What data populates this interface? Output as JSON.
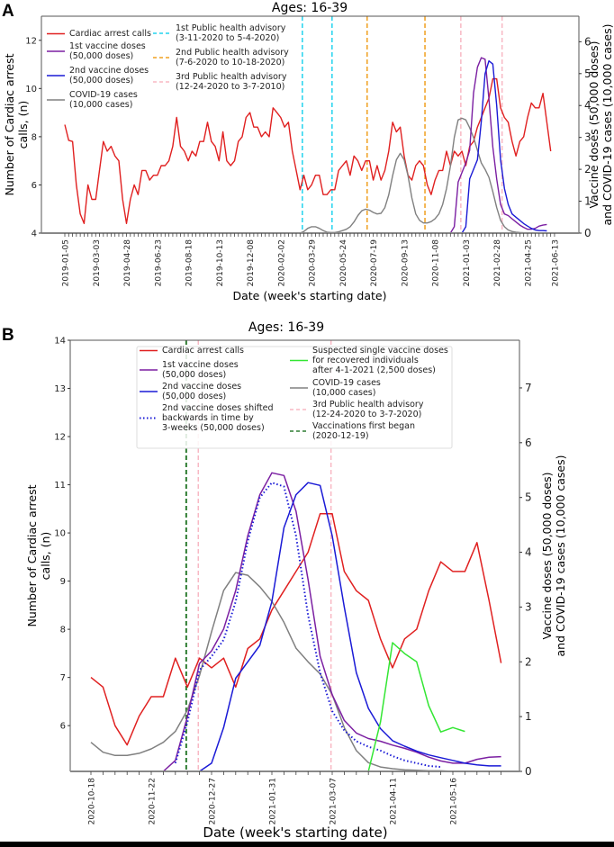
{
  "chart_data": [
    {
      "panel": "A",
      "type": "line",
      "title": "Ages: 16-39",
      "xlabel": "Date (week's starting date)",
      "ylabel": "Number of Cardiac arrest calls, (n)",
      "y2label_line1": "Vaccine doses (50,000 doses)",
      "y2label_line2": "and COVID-19 cases (10,000 cases)",
      "x_start": "2019-01-05",
      "x_step_days": 7,
      "xticks": [
        "2019-01-05",
        "2019-03-03",
        "2019-04-28",
        "2019-06-23",
        "2019-08-18",
        "2019-10-13",
        "2019-12-08",
        "2020-02-02",
        "2020-03-29",
        "2020-05-24",
        "2020-07-19",
        "2020-09-13",
        "2020-11-08",
        "2021-01-03",
        "2021-02-28",
        "2021-04-25",
        "2021-06-13"
      ],
      "xtick_weeks": [
        0,
        8,
        16,
        24,
        32,
        40,
        48,
        56,
        64,
        72,
        80,
        88,
        96,
        104,
        112,
        120,
        127
      ],
      "ylim": [
        4,
        13
      ],
      "yticks": [
        4,
        6,
        8,
        10,
        12
      ],
      "y2lim": [
        0,
        6.8
      ],
      "y2ticks": [
        0,
        1,
        2,
        3,
        4,
        5,
        6
      ],
      "legend": [
        {
          "label_lines": [
            "Cardiac arrest calls"
          ],
          "color": "#e02020",
          "style": "solid"
        },
        {
          "label_lines": [
            "1st vaccine doses",
            "(50,000 doses)"
          ],
          "color": "#7b1fa2",
          "style": "solid"
        },
        {
          "label_lines": [
            "2nd vaccine doses",
            "(50,000 doses)"
          ],
          "color": "#1a1ad6",
          "style": "solid"
        },
        {
          "label_lines": [
            "COVID-19 cases",
            "(10,000 cases)"
          ],
          "color": "#808080",
          "style": "solid"
        },
        {
          "label_lines": [
            "1st Public health advisory",
            "(3-11-2020 to 5-4-2020)"
          ],
          "color": "#22d3ee",
          "style": "dashed"
        },
        {
          "label_lines": [
            "2nd Public health advisory",
            "(7-6-2020 to 10-18-2020)"
          ],
          "color": "#f0a020",
          "style": "dashed"
        },
        {
          "label_lines": [
            "3rd Public health advisory",
            "(12-24-2020 to 3-7-2010)"
          ],
          "color": "#f8b8c4",
          "style": "dashed"
        }
      ],
      "vlines": [
        {
          "week": 61.6,
          "color": "#22d3ee"
        },
        {
          "week": 69.3,
          "color": "#22d3ee"
        },
        {
          "week": 78.4,
          "color": "#f0a020"
        },
        {
          "week": 93.4,
          "color": "#f0a020"
        },
        {
          "week": 102.7,
          "color": "#f8b8c4"
        },
        {
          "week": 113.4,
          "color": "#f8b8c4"
        }
      ],
      "series": [
        {
          "name": "Cardiac arrest calls",
          "axis": "left",
          "color": "#e02020",
          "start_week": 0,
          "values": [
            8.5,
            7.85,
            7.8,
            6.0,
            4.8,
            4.4,
            6.0,
            5.4,
            5.4,
            6.6,
            7.8,
            7.4,
            7.6,
            7.2,
            7.0,
            5.4,
            4.4,
            5.4,
            6.0,
            5.6,
            6.6,
            6.6,
            6.2,
            6.4,
            6.4,
            6.8,
            6.8,
            7.0,
            7.6,
            8.8,
            7.6,
            7.4,
            7.0,
            7.4,
            7.2,
            7.8,
            7.8,
            8.6,
            7.8,
            7.6,
            7.0,
            8.2,
            7.0,
            6.8,
            7.0,
            7.8,
            8.0,
            8.8,
            9.0,
            8.4,
            8.4,
            8.0,
            8.2,
            8.0,
            9.2,
            9.0,
            8.8,
            8.4,
            8.6,
            7.4,
            6.6,
            5.8,
            6.4,
            5.8,
            6.0,
            6.4,
            6.4,
            5.6,
            5.6,
            5.8,
            5.8,
            6.6,
            6.8,
            7.0,
            6.4,
            7.2,
            7.0,
            6.6,
            7.0,
            7.0,
            6.2,
            6.8,
            6.2,
            6.6,
            7.4,
            8.6,
            8.2,
            8.4,
            7.2,
            6.4,
            6.2,
            6.8,
            7.0,
            6.8,
            6.0,
            5.6,
            6.2,
            6.6,
            6.6,
            7.4,
            6.8,
            7.4,
            7.2,
            7.4,
            6.8,
            7.6,
            7.8,
            8.4,
            8.8,
            9.2,
            9.6,
            10.4,
            10.4,
            9.2,
            8.8,
            8.6,
            7.8,
            7.2,
            7.8,
            8.0,
            8.8,
            9.4,
            9.2,
            9.2,
            9.8,
            8.6,
            7.4
          ]
        },
        {
          "name": "COVID-19 cases",
          "axis": "right",
          "color": "#808080",
          "start_week": 61,
          "values": [
            0,
            0.05,
            0.15,
            0.2,
            0.2,
            0.15,
            0.08,
            0.03,
            0.02,
            0.02,
            0.04,
            0.08,
            0.12,
            0.2,
            0.35,
            0.55,
            0.7,
            0.75,
            0.72,
            0.65,
            0.6,
            0.62,
            0.8,
            1.2,
            1.8,
            2.3,
            2.5,
            2.3,
            1.8,
            1.1,
            0.6,
            0.4,
            0.32,
            0.32,
            0.36,
            0.45,
            0.6,
            0.9,
            1.4,
            2.1,
            3.0,
            3.55,
            3.6,
            3.55,
            3.3,
            3.0,
            2.6,
            2.2,
            2.0,
            1.75,
            1.3,
            0.8,
            0.4,
            0.2,
            0.1,
            0.05,
            0.03,
            0.02,
            0.01,
            0.01,
            0.01,
            0.01,
            0.0,
            0.0,
            0.0,
            0.0,
            0.0
          ]
        },
        {
          "name": "1st vaccine doses",
          "axis": "right",
          "color": "#7b1fa2",
          "start_week": 100,
          "values": [
            0,
            0.2,
            1.6,
            1.9,
            2.2,
            2.6,
            4.4,
            5.2,
            5.5,
            5.45,
            4.2,
            2.7,
            1.7,
            0.9,
            0.6,
            0.55,
            0.45,
            0.35,
            0.25,
            0.18,
            0.12,
            0.12,
            0.15,
            0.22,
            0.25,
            0.27
          ]
        },
        {
          "name": "2nd vaccine doses",
          "axis": "right",
          "color": "#1a1ad6",
          "start_week": 103,
          "values": [
            0,
            0.2,
            1.7,
            2.0,
            2.3,
            3.5,
            5.0,
            5.4,
            5.3,
            4.0,
            2.3,
            1.4,
            0.9,
            0.6,
            0.5,
            0.4,
            0.3,
            0.22,
            0.15,
            0.1,
            0.08,
            0.08,
            0.07
          ]
        }
      ]
    },
    {
      "panel": "B",
      "type": "line",
      "title": "Ages: 16-39",
      "xlabel": "Date (week's starting date)",
      "ylabel": "Number of Cardiac arrest calls, (n)",
      "y2label_line1": "Vaccine doses (50,000 doses)",
      "y2label_line2": "and COVID-19 cases (10,000 cases)",
      "x_start": "2020-10-18",
      "x_step_days": 7,
      "xticks": [
        "2020-10-18",
        "2020-11-22",
        "2020-12-27",
        "2021-01-31",
        "2021-03-07",
        "2021-04-11",
        "2021-05-16"
      ],
      "xtick_weeks": [
        0,
        5,
        10,
        15,
        20,
        25,
        30
      ],
      "ylim": [
        5.05,
        14.0
      ],
      "yticks": [
        6,
        7,
        8,
        9,
        10,
        11,
        12,
        13,
        14
      ],
      "y2lim": [
        0,
        7.87
      ],
      "y2ticks": [
        0,
        1,
        2,
        3,
        4,
        5,
        6,
        7
      ],
      "legend": [
        {
          "label_lines": [
            "Cardiac arrest calls"
          ],
          "color": "#e02020",
          "style": "solid"
        },
        {
          "label_lines": [
            "1st vaccine doses",
            "(50,000 doses)"
          ],
          "color": "#7b1fa2",
          "style": "solid"
        },
        {
          "label_lines": [
            "2nd vaccine doses",
            "(50,000 doses)"
          ],
          "color": "#1a1ad6",
          "style": "solid"
        },
        {
          "label_lines": [
            "2nd vaccine doses shifted",
            "backwards in time by",
            "3-weeks (50,000 doses)"
          ],
          "color": "#1a1ad6",
          "style": "dotted"
        },
        {
          "label_lines": [
            "Suspected single vaccine doses",
            "for recovered individuals",
            "after 4-1-2021 (2,500 doses)"
          ],
          "color": "#33e633",
          "style": "solid"
        },
        {
          "label_lines": [
            "COVID-19 cases",
            "(10,000 cases)"
          ],
          "color": "#808080",
          "style": "solid"
        },
        {
          "label_lines": [
            "3rd Public health advisory",
            "(12-24-2020 to 3-7-2020)"
          ],
          "color": "#f8b8c4",
          "style": "dashed"
        },
        {
          "label_lines": [
            "Vaccinations first began",
            "(2020-12-19)"
          ],
          "color": "#2e7d32",
          "style": "dashed"
        }
      ],
      "vlines": [
        {
          "week": 7.9,
          "color": "#2e7d32"
        },
        {
          "week": 8.9,
          "color": "#f8b8c4"
        },
        {
          "week": 19.9,
          "color": "#f8b8c4"
        }
      ],
      "series": [
        {
          "name": "Cardiac arrest calls",
          "axis": "left",
          "color": "#e02020",
          "style": "solid",
          "start_week": 0,
          "values": [
            7.0,
            6.8,
            6.0,
            5.6,
            6.2,
            6.6,
            6.6,
            7.4,
            6.8,
            7.4,
            7.2,
            7.4,
            6.8,
            7.6,
            7.8,
            8.4,
            8.8,
            9.2,
            9.6,
            10.4,
            10.4,
            9.2,
            8.8,
            8.6,
            7.8,
            7.2,
            7.8,
            8.0,
            8.8,
            9.4,
            9.2,
            9.2,
            9.8,
            8.6,
            7.3
          ]
        },
        {
          "name": "COVID-19 cases",
          "axis": "right",
          "color": "#808080",
          "style": "solid",
          "start_week": 0,
          "values": [
            0.53,
            0.35,
            0.29,
            0.29,
            0.33,
            0.41,
            0.53,
            0.73,
            1.12,
            1.75,
            2.55,
            3.3,
            3.63,
            3.58,
            3.37,
            3.1,
            2.72,
            2.25,
            2.0,
            1.78,
            1.4,
            0.8,
            0.38,
            0.16,
            0.08,
            0.05,
            0.03,
            0.02,
            0.01,
            0.01,
            0.0,
            0.0,
            0.0,
            0.0,
            0.0
          ]
        },
        {
          "name": "1st vaccine doses",
          "axis": "right",
          "color": "#7b1fa2",
          "style": "solid",
          "start_week": 0,
          "values": [
            0,
            0,
            0,
            0,
            0,
            0,
            0,
            0.2,
            1.0,
            1.97,
            2.2,
            2.6,
            3.3,
            4.3,
            5.05,
            5.45,
            5.4,
            4.75,
            3.5,
            2.1,
            1.4,
            0.93,
            0.7,
            0.6,
            0.55,
            0.48,
            0.42,
            0.35,
            0.26,
            0.19,
            0.15,
            0.15,
            0.22,
            0.26,
            0.27
          ]
        },
        {
          "name": "2nd vaccine doses",
          "axis": "right",
          "color": "#1a1ad6",
          "style": "solid",
          "start_week": 0,
          "values": [
            0,
            0,
            0,
            0,
            0,
            0,
            0,
            0,
            0,
            0,
            0.15,
            0.8,
            1.7,
            2.0,
            2.3,
            3.1,
            4.45,
            5.05,
            5.27,
            5.22,
            4.3,
            3.0,
            1.8,
            1.15,
            0.78,
            0.56,
            0.46,
            0.37,
            0.3,
            0.25,
            0.2,
            0.15,
            0.12,
            0.1,
            0.1
          ]
        },
        {
          "name": "2nd vaccine doses shifted back 3 weeks",
          "axis": "right",
          "color": "#1a1ad6",
          "style": "dotted",
          "start_week": 7,
          "values": [
            0.15,
            0.9,
            1.85,
            2.1,
            2.4,
            3.1,
            4.2,
            5.0,
            5.27,
            5.2,
            4.3,
            2.85,
            1.8,
            1.1,
            0.75,
            0.55,
            0.45,
            0.38,
            0.28,
            0.2,
            0.15,
            0.1,
            0.08
          ]
        },
        {
          "name": "Suspected single vaccine doses for recovered individuals",
          "axis": "right",
          "color": "#33e633",
          "style": "solid",
          "start_week": 23,
          "values": [
            0,
            0.9,
            2.35,
            2.15,
            2.0,
            1.2,
            0.72,
            0.8,
            0.73
          ]
        }
      ]
    }
  ],
  "panels": {
    "a_label": "A",
    "b_label": "B"
  }
}
